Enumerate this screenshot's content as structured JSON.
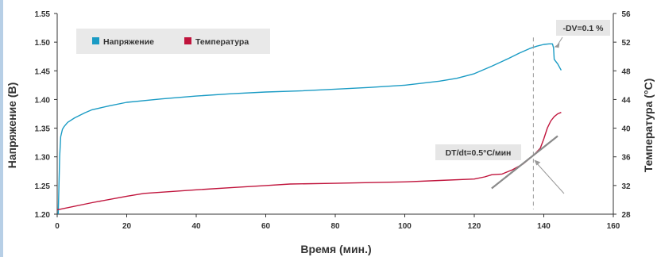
{
  "chart_data": {
    "type": "line",
    "xlabel": "Время (мин.)",
    "ylabel_left": "Напряжение (В)",
    "ylabel_right": "Температура (°C)",
    "xlim": [
      0,
      160
    ],
    "x_ticks": [
      0,
      20,
      40,
      60,
      80,
      100,
      120,
      140,
      160
    ],
    "ylim_left": [
      1.2,
      1.55
    ],
    "y_ticks_left": [
      "1.20",
      "1.25",
      "1.30",
      "1.35",
      "1.40",
      "1.45",
      "1.50",
      "1.55"
    ],
    "ylim_right": [
      28,
      56
    ],
    "y_ticks_right": [
      "28",
      "32",
      "36",
      "40",
      "44",
      "48",
      "52",
      "56"
    ],
    "grid": false,
    "legend": "top-left",
    "series": [
      {
        "name": "Напряжение",
        "axis": "left",
        "color": "#1a9bc4",
        "points": [
          [
            0.3,
            1.2
          ],
          [
            0.7,
            1.3
          ],
          [
            1.0,
            1.335
          ],
          [
            1.5,
            1.348
          ],
          [
            2,
            1.353
          ],
          [
            3,
            1.36
          ],
          [
            5,
            1.368
          ],
          [
            8,
            1.377
          ],
          [
            10,
            1.382
          ],
          [
            15,
            1.389
          ],
          [
            20,
            1.395
          ],
          [
            30,
            1.401
          ],
          [
            40,
            1.406
          ],
          [
            50,
            1.41
          ],
          [
            60,
            1.413
          ],
          [
            70,
            1.415
          ],
          [
            80,
            1.418
          ],
          [
            90,
            1.421
          ],
          [
            100,
            1.425
          ],
          [
            110,
            1.432
          ],
          [
            115,
            1.437
          ],
          [
            120,
            1.445
          ],
          [
            125,
            1.458
          ],
          [
            130,
            1.472
          ],
          [
            133,
            1.481
          ],
          [
            136,
            1.489
          ],
          [
            138,
            1.493
          ],
          [
            140,
            1.496
          ],
          [
            141.5,
            1.497
          ],
          [
            142.5,
            1.497
          ],
          [
            142.8,
            1.49
          ],
          [
            143,
            1.47
          ],
          [
            144,
            1.462
          ],
          [
            145,
            1.451
          ]
        ]
      },
      {
        "name": "Температура",
        "axis": "right",
        "color": "#c0143c",
        "points": [
          [
            0,
            28.6
          ],
          [
            10,
            29.6
          ],
          [
            20,
            30.5
          ],
          [
            25,
            30.9
          ],
          [
            40,
            31.4
          ],
          [
            50,
            31.7
          ],
          [
            60,
            32.0
          ],
          [
            67,
            32.2
          ],
          [
            80,
            32.3
          ],
          [
            100,
            32.5
          ],
          [
            110,
            32.7
          ],
          [
            120,
            32.9
          ],
          [
            123,
            33.2
          ],
          [
            125,
            33.5
          ],
          [
            128,
            33.6
          ],
          [
            131,
            34.2
          ],
          [
            134,
            35.0
          ],
          [
            137,
            36.2
          ],
          [
            139,
            37.2
          ],
          [
            140,
            38.5
          ],
          [
            141,
            40.0
          ],
          [
            142,
            41.0
          ],
          [
            143,
            41.6
          ],
          [
            144,
            42.0
          ],
          [
            145,
            42.2
          ]
        ]
      }
    ],
    "annotations": [
      {
        "text": "-DV=0.1 %",
        "x": 142.5,
        "y": 1.497,
        "axis": "left"
      },
      {
        "text": "DT/dt=0.5°C/мин",
        "x": 137,
        "y": 35.8,
        "axis": "right"
      }
    ],
    "tangent_line": {
      "x": [
        125,
        144
      ],
      "y_right": [
        31.6,
        38.9
      ],
      "color": "#8a8a8a"
    },
    "marker_line": {
      "x": 137,
      "style": "dashed",
      "color": "#9a9a9a"
    }
  }
}
